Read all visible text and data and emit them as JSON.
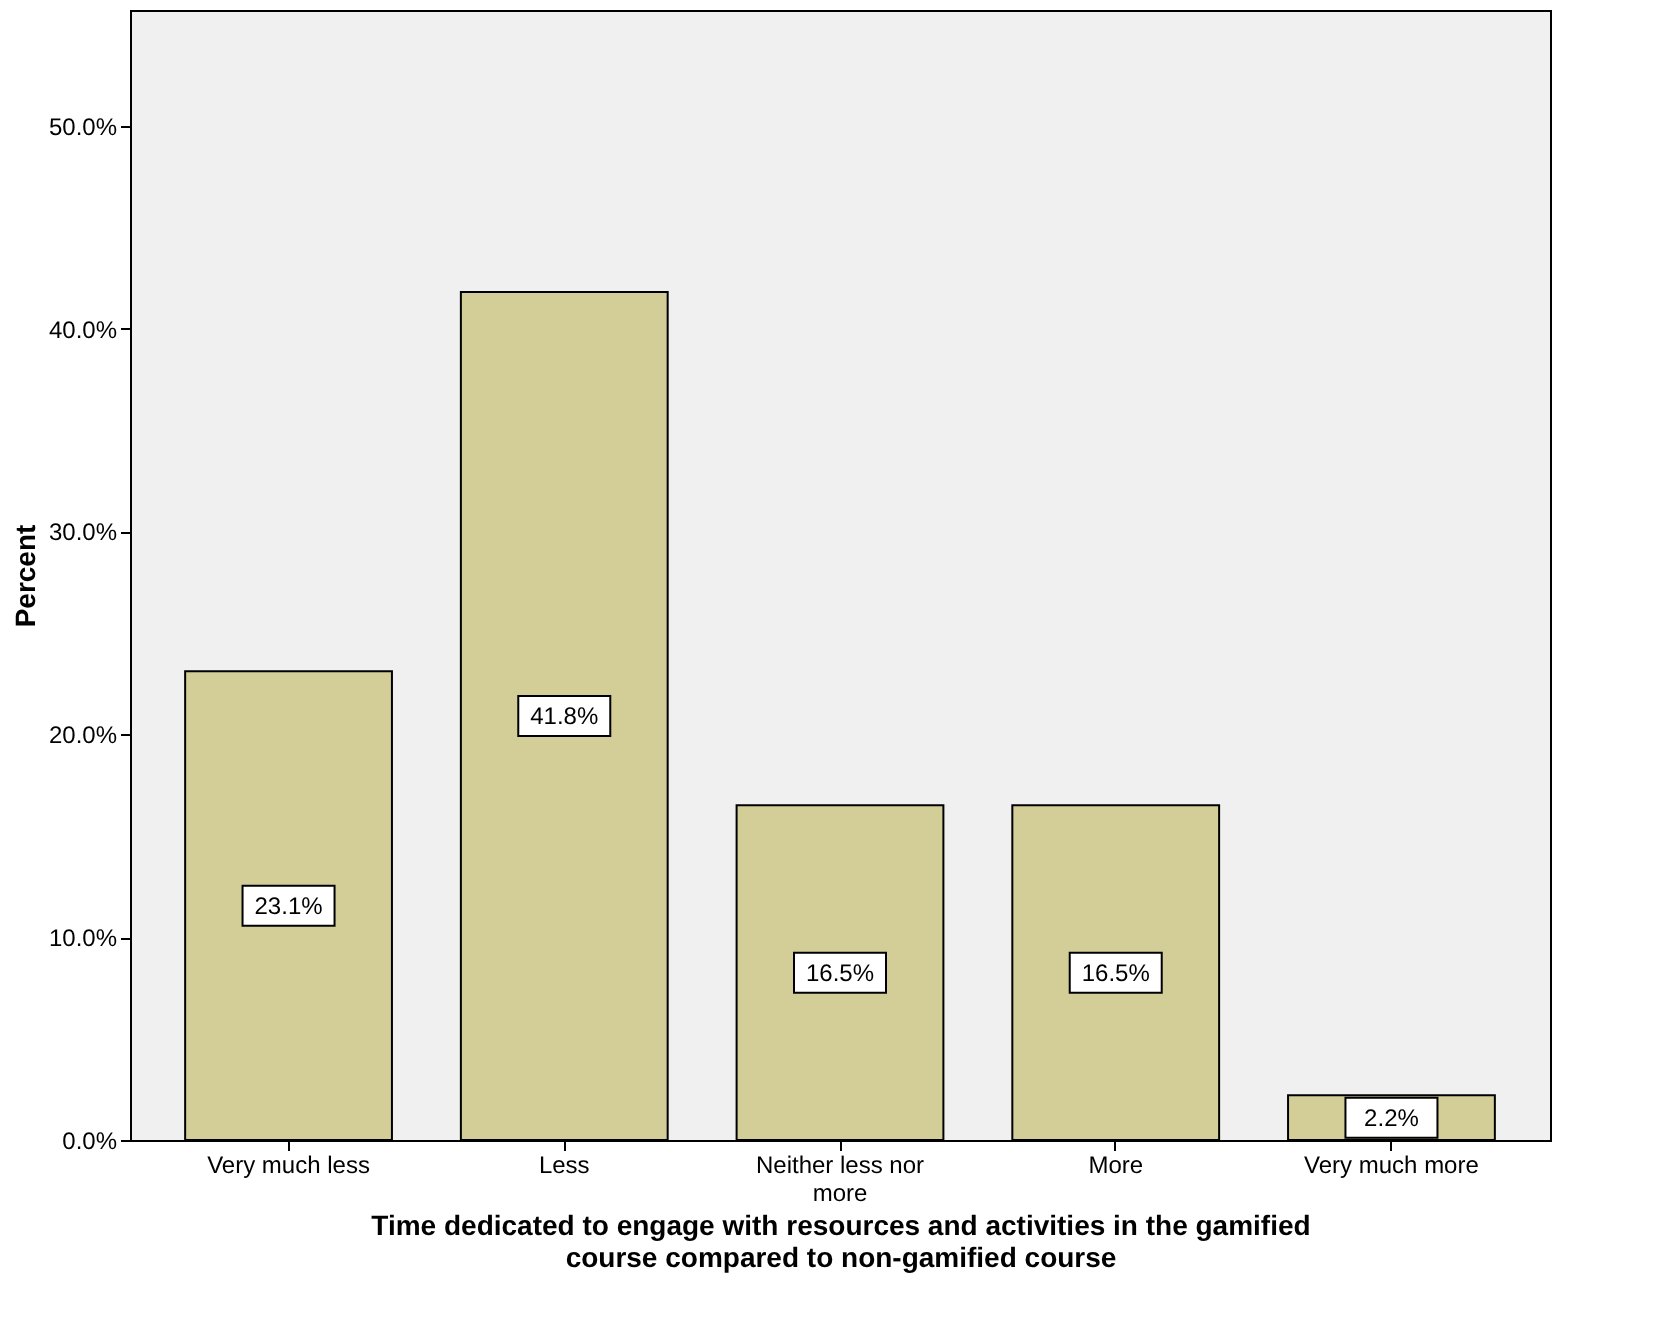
{
  "chart_data": {
    "type": "bar",
    "xlabel": "Time dedicated to engage with resources and activities in the gamified course compared to non-gamified course",
    "ylabel": "Percent",
    "categories": [
      "Very much less",
      "Less",
      "Neither less nor more",
      "More",
      "Very much more"
    ],
    "values": [
      23.1,
      41.8,
      16.5,
      16.5,
      2.2
    ],
    "value_labels": [
      "23.1%",
      "41.8%",
      "16.5%",
      "16.5%",
      "2.2%"
    ],
    "color": "#d3ce97",
    "ylim": [
      0,
      55.7
    ],
    "yticks": [
      {
        "value": 0,
        "label": "0.0%"
      },
      {
        "value": 10,
        "label": "10.0%"
      },
      {
        "value": 20,
        "label": "20.0%"
      },
      {
        "value": 30,
        "label": "30.0%"
      },
      {
        "value": 40,
        "label": "40.0%"
      },
      {
        "value": 50,
        "label": "50.0%"
      }
    ],
    "grid": false
  }
}
